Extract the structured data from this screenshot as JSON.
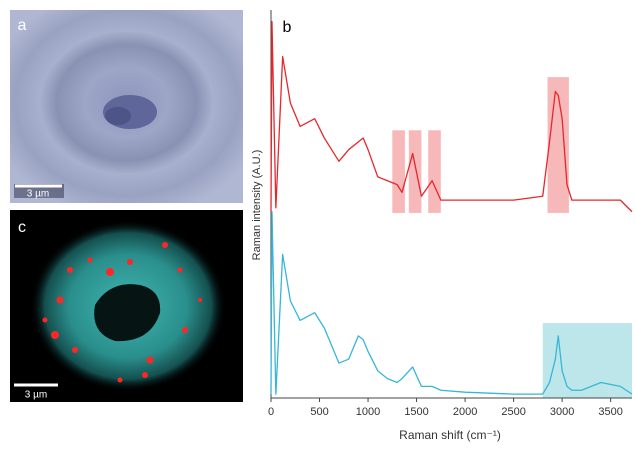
{
  "panels": {
    "a": {
      "label": "a",
      "scale_bar": "3 µm"
    },
    "c": {
      "label": "c",
      "scale_bar": "3 µm"
    }
  },
  "chart_data": {
    "type": "line",
    "panel_label": "b",
    "x_label": "Raman shift (cm⁻¹)",
    "y_label": "Raman intensity (A.U.)",
    "x": [
      0,
      10,
      50,
      120,
      200,
      300,
      450,
      550,
      700,
      800,
      900,
      950,
      1000,
      1100,
      1200,
      1300,
      1350,
      1460,
      1550,
      1660,
      1750,
      2000,
      2500,
      2800,
      2870,
      2930,
      2960,
      3000,
      3050,
      3100,
      3200,
      3400,
      3600,
      3720
    ],
    "series": [
      {
        "color": "#e8262c",
        "values": [
          48,
          97,
          49,
          88,
          76,
          70,
          72,
          67,
          61,
          64,
          66,
          67,
          64,
          57,
          56,
          55,
          53,
          63,
          52,
          56,
          51,
          51,
          51,
          52,
          66,
          79,
          78,
          72,
          55,
          51,
          51,
          51,
          51,
          48
        ]
      },
      {
        "color": "#36b6d8",
        "values": [
          1,
          48,
          1,
          37,
          25,
          20,
          22,
          18,
          9,
          10,
          16,
          15,
          12,
          7,
          5,
          4,
          5,
          8,
          3,
          3,
          2,
          1.5,
          1,
          1,
          4,
          10,
          16,
          7,
          3,
          2,
          2,
          4,
          3,
          1
        ]
      }
    ],
    "highlights": [
      {
        "x0": 1250,
        "x1": 1380,
        "y0": 47.7,
        "y1": 69,
        "color": "#f4a0a3"
      },
      {
        "x0": 1420,
        "x1": 1550,
        "y0": 47.7,
        "y1": 69,
        "color": "#f4a0a3"
      },
      {
        "x0": 1620,
        "x1": 1750,
        "y0": 47.7,
        "y1": 69,
        "color": "#f4a0a3"
      },
      {
        "x0": 2850,
        "x1": 3070,
        "y0": 47.7,
        "y1": 82.7,
        "color": "#f4a0a3"
      },
      {
        "x0": 2800,
        "x1": 3720,
        "y0": 0,
        "y1": 19.3,
        "color": "#a6dde2"
      }
    ],
    "xlim": [
      0,
      3720
    ],
    "ylim": [
      0,
      100
    ],
    "xticks": [
      0,
      500,
      1000,
      1500,
      2000,
      2500,
      3000,
      3500
    ]
  }
}
